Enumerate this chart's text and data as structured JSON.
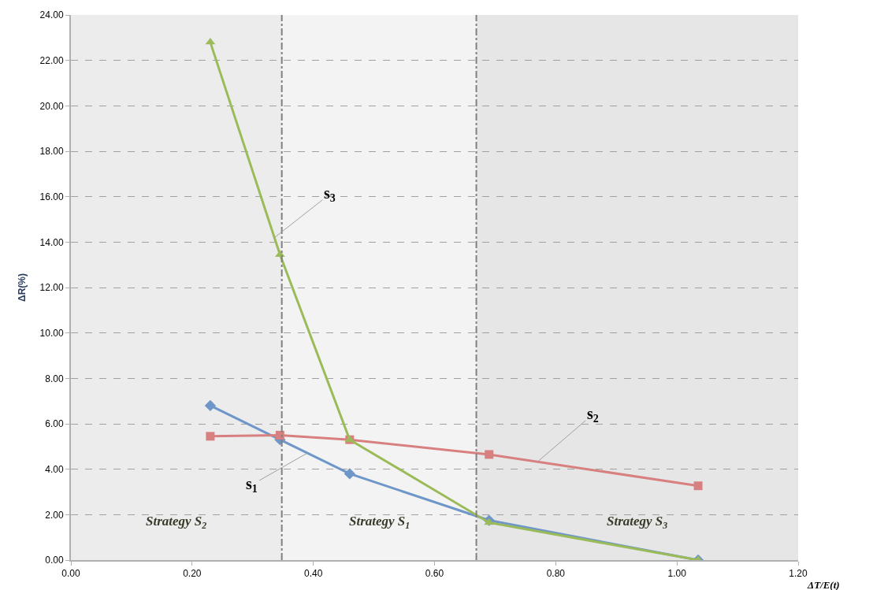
{
  "chart_data": {
    "type": "line",
    "xlabel": "ΔT/E(t)",
    "ylabel": "ΔR(%)",
    "xlim": [
      0,
      1.2
    ],
    "ylim": [
      0,
      24
    ],
    "xticks": [
      {
        "value": 0,
        "label": "0.00"
      },
      {
        "value": 0.2,
        "label": "0.20"
      },
      {
        "value": 0.4,
        "label": "0.40"
      },
      {
        "value": 0.6,
        "label": "0.60"
      },
      {
        "value": 0.8,
        "label": "0.80"
      },
      {
        "value": 1.0,
        "label": "1.00"
      },
      {
        "value": 1.2,
        "label": "1.20"
      }
    ],
    "yticks": [
      {
        "value": 0,
        "label": "0.00"
      },
      {
        "value": 2,
        "label": "2.00"
      },
      {
        "value": 4,
        "label": "4.00"
      },
      {
        "value": 6,
        "label": "6.00"
      },
      {
        "value": 8,
        "label": "8.00"
      },
      {
        "value": 10,
        "label": "10.00"
      },
      {
        "value": 12,
        "label": "12.00"
      },
      {
        "value": 14,
        "label": "14.00"
      },
      {
        "value": 16,
        "label": "16.00"
      },
      {
        "value": 18,
        "label": "18.00"
      },
      {
        "value": 20,
        "label": "20.00"
      },
      {
        "value": 22,
        "label": "22.00"
      },
      {
        "value": 24,
        "label": "24.00"
      }
    ],
    "grid": "y",
    "legend": false,
    "line_style": "solid",
    "x": [
      0.23,
      0.345,
      0.46,
      0.69,
      1.035
    ],
    "series": [
      {
        "color": "#6f96c8",
        "marker": "diamond",
        "values": [
          6.8,
          5.3,
          3.8,
          1.75,
          0
        ]
      },
      {
        "color": "#d88080",
        "marker": "square",
        "values": [
          5.45,
          5.5,
          5.3,
          4.65,
          3.27
        ]
      },
      {
        "color": "#9bbb59",
        "marker": "triangle",
        "values": [
          22.8,
          13.45,
          5.3,
          1.65,
          0
        ]
      }
    ],
    "bands": [
      {
        "axis": "x",
        "from": 0,
        "to": 0.348,
        "label": "Strategy S$_{2}$",
        "color": "#ececec"
      },
      {
        "axis": "x",
        "from": 0.348,
        "to": 0.669,
        "label": "Strategy S$_{1}$",
        "color": "#f3f3f3"
      },
      {
        "axis": "x",
        "from": 0.669,
        "to": 1.2,
        "label": "Strategy S$_{3}$",
        "color": "#e6e6e6"
      }
    ],
    "ref_lines": [
      {
        "axis": "x",
        "value": 0.348,
        "color": "#808080",
        "line_style": "dashed"
      },
      {
        "axis": "x",
        "value": 0.669,
        "color": "#808080",
        "line_style": "dashed"
      }
    ],
    "annotations": [
      {
        "text": "s$_{1}$",
        "x": 0.39,
        "y": 4.71
      },
      {
        "text": "s$_{2}$",
        "x": 0.77,
        "y": 4.33
      },
      {
        "text": "s$_{3}$",
        "x": 0.336,
        "y": 14.2
      }
    ]
  }
}
